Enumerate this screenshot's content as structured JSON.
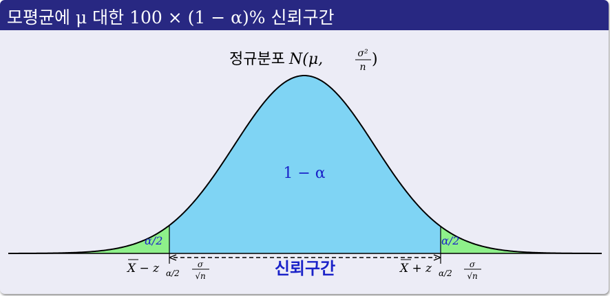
{
  "title": "모평균에 μ 대한 100 × (1 − α)% 신뢰구간",
  "distribution_label": {
    "prefix": "정규분포",
    "formula_head": "N(μ,",
    "frac_num": "σ²",
    "frac_den": "n",
    "formula_tail": ")"
  },
  "center_label": "1 − α",
  "left_tail_label": "α/2",
  "right_tail_label": "α/2",
  "interval_label": "신뢰구간",
  "lower_bound": {
    "main": "X − z",
    "sub": "α/2",
    "frac_num": "σ",
    "frac_den": "√n"
  },
  "upper_bound": {
    "main": "X + z",
    "sub": "α/2",
    "frac_num": "σ",
    "frac_den": "√n"
  },
  "colors": {
    "title_bar": "#282882",
    "background": "#ececf6",
    "center_fill": "#7fd4f4",
    "tail_fill": "#8ef08a",
    "label_blue": "#1a22c8",
    "curve": "#000000"
  }
}
